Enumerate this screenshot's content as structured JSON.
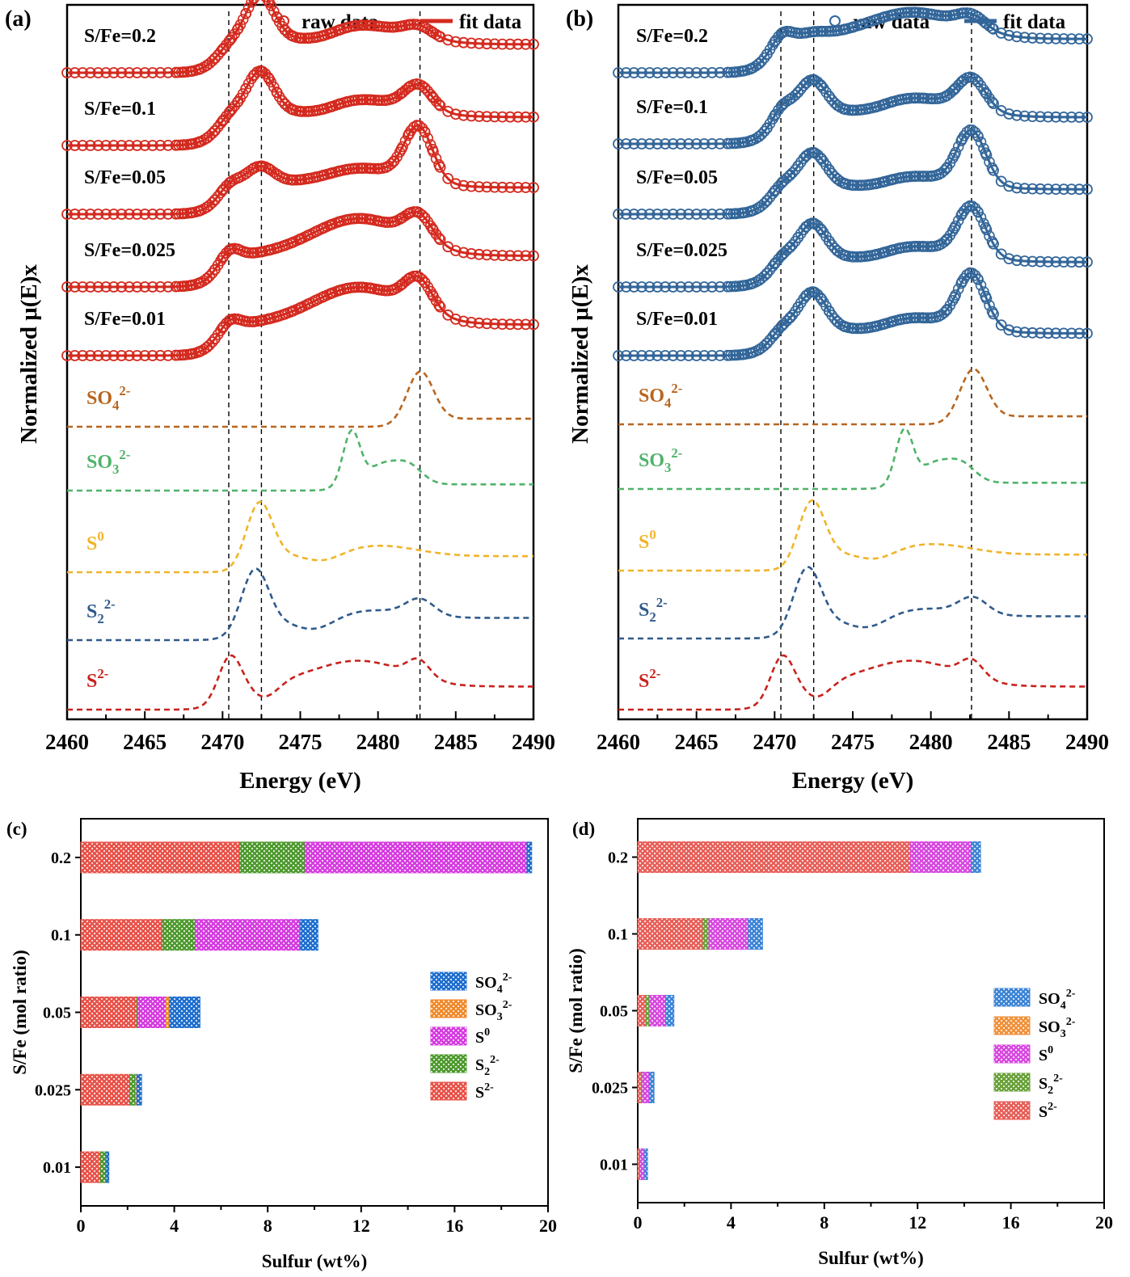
{
  "chart_data": [
    {
      "id": "a",
      "panel_label": "(a)",
      "type": "line",
      "title": "",
      "xlabel": "Energy (eV)",
      "ylabel": "Normalized μ(E)x",
      "xlim": [
        2460,
        2490
      ],
      "xticks": [
        2460,
        2465,
        2470,
        2475,
        2480,
        2485,
        2490
      ],
      "reference_lines_eV": [
        2470.4,
        2472.5,
        2482.7
      ],
      "legend": {
        "placement": "top-right",
        "raw_label": "raw data",
        "fit_label": "fit data"
      },
      "series_color": "#d42a1f",
      "sample_series": [
        {
          "name": "S/Fe=0.2",
          "shape": {
            "edge": 0.32,
            "p1": 0.04,
            "p2": 0.55,
            "broad": 0.22,
            "p3": 0.12,
            "post": 0.3
          }
        },
        {
          "name": "S/Fe=0.1",
          "shape": {
            "edge": 0.32,
            "p1": 0.06,
            "p2": 0.5,
            "broad": 0.2,
            "p3": 0.28,
            "post": 0.3
          }
        },
        {
          "name": "S/Fe=0.05",
          "shape": {
            "edge": 0.3,
            "p1": 0.08,
            "p2": 0.22,
            "broad": 0.22,
            "p3": 0.6,
            "post": 0.27
          }
        },
        {
          "name": "S/Fe=0.025",
          "shape": {
            "edge": 0.35,
            "p1": 0.12,
            "p2": 0.0,
            "broad": 0.42,
            "p3": 0.3,
            "post": 0.32
          }
        },
        {
          "name": "S/Fe=0.01",
          "shape": {
            "edge": 0.35,
            "p1": 0.1,
            "p2": 0.0,
            "broad": 0.42,
            "p3": 0.35,
            "post": 0.32
          }
        }
      ],
      "reference_series": [
        {
          "name": "SO4 2-",
          "base": "SO",
          "sub": "4",
          "sup": "2-",
          "color": "#b8651f",
          "kind": "so4"
        },
        {
          "name": "SO3 2-",
          "base": "SO",
          "sub": "3",
          "sup": "2-",
          "color": "#4fb36a",
          "kind": "so3"
        },
        {
          "name": "S0",
          "base": "S",
          "sub": "",
          "sup": "0",
          "color": "#f0b429",
          "kind": "s0"
        },
        {
          "name": "S2 2-",
          "base": "S",
          "sub": "2",
          "sup": "2-",
          "color": "#2e5a8c",
          "kind": "s2"
        },
        {
          "name": "S 2-",
          "base": "S",
          "sub": "",
          "sup": "2-",
          "color": "#c8221c",
          "kind": "s"
        }
      ]
    },
    {
      "id": "b",
      "panel_label": "(b)",
      "type": "line",
      "title": "",
      "xlabel": "Energy (eV)",
      "ylabel": "Normalized μ(E)x",
      "xlim": [
        2460,
        2490
      ],
      "xticks": [
        2460,
        2465,
        2470,
        2475,
        2480,
        2485,
        2490
      ],
      "reference_lines_eV": [
        2470.4,
        2472.5,
        2482.6
      ],
      "legend": {
        "placement": "top-right",
        "raw_label": "raw data",
        "fit_label": "fit data"
      },
      "series_color": "#336699",
      "sample_series": [
        {
          "name": "S/Fe=0.2",
          "shape": {
            "edge": 0.38,
            "p1": 0.12,
            "p2": 0.05,
            "broad": 0.3,
            "p3": 0.15,
            "post": 0.32
          }
        },
        {
          "name": "S/Fe=0.1",
          "shape": {
            "edge": 0.3,
            "p1": 0.14,
            "p2": 0.4,
            "broad": 0.22,
            "p3": 0.35,
            "post": 0.3
          }
        },
        {
          "name": "S/Fe=0.05",
          "shape": {
            "edge": 0.28,
            "p1": 0.08,
            "p2": 0.4,
            "broad": 0.15,
            "p3": 0.6,
            "post": 0.25
          }
        },
        {
          "name": "S/Fe=0.025",
          "shape": {
            "edge": 0.28,
            "p1": 0.08,
            "p2": 0.42,
            "broad": 0.18,
            "p3": 0.55,
            "post": 0.25
          }
        },
        {
          "name": "S/Fe=0.01",
          "shape": {
            "edge": 0.25,
            "p1": 0.08,
            "p2": 0.45,
            "broad": 0.18,
            "p3": 0.6,
            "post": 0.25
          }
        }
      ],
      "reference_series": [
        {
          "name": "SO4 2-",
          "base": "SO",
          "sub": "4",
          "sup": "2-",
          "color": "#b8651f",
          "kind": "so4"
        },
        {
          "name": "SO3 2-",
          "base": "SO",
          "sub": "3",
          "sup": "2-",
          "color": "#4fb36a",
          "kind": "so3"
        },
        {
          "name": "S0",
          "base": "S",
          "sub": "",
          "sup": "0",
          "color": "#f0b429",
          "kind": "s0"
        },
        {
          "name": "S2 2-",
          "base": "S",
          "sub": "2",
          "sup": "2-",
          "color": "#2e5a8c",
          "kind": "s2"
        },
        {
          "name": "S 2-",
          "base": "S",
          "sub": "",
          "sup": "2-",
          "color": "#c8221c",
          "kind": "s"
        }
      ]
    },
    {
      "id": "c",
      "panel_label": "(c)",
      "type": "bar",
      "orientation": "horizontal-stacked",
      "title": "",
      "xlabel": "Sulfur (wt%)",
      "ylabel": "S/Fe (mol ratio)",
      "xlim": [
        0,
        20
      ],
      "xticks": [
        0,
        4,
        8,
        12,
        16,
        20
      ],
      "categories": [
        "0.2",
        "0.1",
        "0.05",
        "0.025",
        "0.01"
      ],
      "legend_placement": "right",
      "series": [
        {
          "name": "S2-",
          "base": "S",
          "sub": "",
          "sup": "2-",
          "color": "#e8534a",
          "values": [
            6.8,
            3.5,
            2.4,
            2.1,
            0.85
          ]
        },
        {
          "name": "S2 2-",
          "base": "S",
          "sub": "2",
          "sup": "2-",
          "color": "#4e9a2e",
          "values": [
            2.8,
            1.4,
            0.05,
            0.25,
            0.25
          ]
        },
        {
          "name": "S0",
          "base": "S",
          "sub": "",
          "sup": "0",
          "color": "#d63ce0",
          "values": [
            9.5,
            4.5,
            1.2,
            0.0,
            0.0
          ]
        },
        {
          "name": "SO3 2-",
          "base": "SO",
          "sub": "3",
          "sup": "2-",
          "color": "#f08a2c",
          "values": [
            0.0,
            0.0,
            0.15,
            0.05,
            0.0
          ]
        },
        {
          "name": "SO4 2-",
          "base": "SO",
          "sub": "4",
          "sup": "2-",
          "color": "#1f6fcf",
          "values": [
            0.2,
            0.75,
            1.3,
            0.2,
            0.1
          ]
        }
      ],
      "legend_order": [
        4,
        3,
        2,
        1,
        0
      ]
    },
    {
      "id": "d",
      "panel_label": "(d)",
      "type": "bar",
      "orientation": "horizontal-stacked",
      "title": "",
      "xlabel": "Sulfur (wt%)",
      "ylabel": "S/Fe (mol ratio)",
      "xlim": [
        0,
        20
      ],
      "xticks": [
        0,
        4,
        8,
        12,
        16,
        20
      ],
      "categories": [
        "0.2",
        "0.1",
        "0.05",
        "0.025",
        "0.01"
      ],
      "legend_placement": "right",
      "series": [
        {
          "name": "S2-",
          "base": "S",
          "sub": "",
          "sup": "2-",
          "color": "#e8605a",
          "values": [
            11.7,
            2.8,
            0.35,
            0.15,
            0.08
          ]
        },
        {
          "name": "S2 2-",
          "base": "S",
          "sub": "2",
          "sup": "2-",
          "color": "#6aa23a",
          "values": [
            0.0,
            0.25,
            0.15,
            0.05,
            0.02
          ]
        },
        {
          "name": "S0",
          "base": "S",
          "sub": "",
          "sup": "0",
          "color": "#d84ae0",
          "values": [
            2.6,
            1.7,
            0.7,
            0.3,
            0.2
          ]
        },
        {
          "name": "SO3 2-",
          "base": "SO",
          "sub": "3",
          "sup": "2-",
          "color": "#f0923c",
          "values": [
            0.0,
            0.0,
            0.0,
            0.0,
            0.0
          ]
        },
        {
          "name": "SO4 2-",
          "base": "SO",
          "sub": "4",
          "sup": "2-",
          "color": "#3d85d6",
          "values": [
            0.4,
            0.6,
            0.35,
            0.2,
            0.12
          ]
        }
      ],
      "legend_order": [
        4,
        3,
        2,
        1,
        0
      ]
    }
  ]
}
